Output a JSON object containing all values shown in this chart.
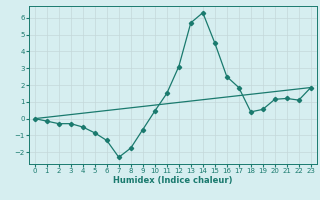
{
  "xlabel": "Humidex (Indice chaleur)",
  "ylabel": "",
  "background_color": "#d6eef0",
  "grid_color": "#c4d8da",
  "line_color": "#1a7a6e",
  "xlim": [
    -0.5,
    23.5
  ],
  "ylim": [
    -2.7,
    6.7
  ],
  "xticks": [
    0,
    1,
    2,
    3,
    4,
    5,
    6,
    7,
    8,
    9,
    10,
    11,
    12,
    13,
    14,
    15,
    16,
    17,
    18,
    19,
    20,
    21,
    22,
    23
  ],
  "yticks": [
    -2,
    -1,
    0,
    1,
    2,
    3,
    4,
    5,
    6
  ],
  "series1_x": [
    0,
    1,
    2,
    3,
    4,
    5,
    6,
    7,
    8,
    9,
    10,
    11,
    12,
    13,
    14,
    15,
    16,
    17,
    18,
    19,
    20,
    21,
    22,
    23
  ],
  "series1_y": [
    0.0,
    -0.15,
    -0.3,
    -0.3,
    -0.5,
    -0.85,
    -1.3,
    -2.3,
    -1.75,
    -0.65,
    0.45,
    1.5,
    3.1,
    5.7,
    6.3,
    4.5,
    2.5,
    1.85,
    0.4,
    0.55,
    1.15,
    1.2,
    1.1,
    1.85
  ],
  "series2_x": [
    0,
    23
  ],
  "series2_y": [
    0.0,
    1.85
  ],
  "marker": "D",
  "markersize": 2.2,
  "linewidth": 0.9,
  "tick_fontsize": 5.0,
  "xlabel_fontsize": 6.0
}
